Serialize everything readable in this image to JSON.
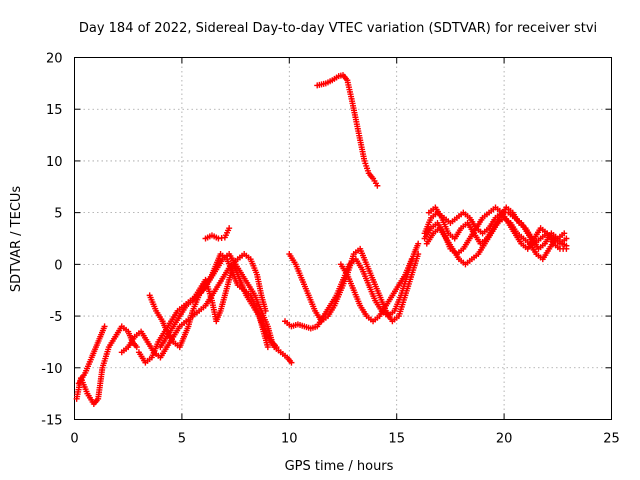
{
  "chart_data": {
    "type": "scatter",
    "title": "Day 184 of 2022, Sidereal Day-to-day VTEC variation (SDTVAR) for receiver stvi",
    "xlabel": "GPS time / hours",
    "ylabel": "SDTVAR / TECUs",
    "xlim": [
      0,
      25
    ],
    "ylim": [
      -15,
      20
    ],
    "xticks": [
      0,
      5,
      10,
      15,
      20,
      25
    ],
    "yticks": [
      -15,
      -10,
      -5,
      0,
      5,
      10,
      15,
      20
    ],
    "grid": true,
    "marker": "+",
    "color": "#ff0000",
    "series": [
      {
        "name": "track-1",
        "points": [
          [
            0.1,
            -13.0
          ],
          [
            0.3,
            -11.0
          ],
          [
            0.6,
            -12.5
          ],
          [
            0.9,
            -13.5
          ],
          [
            1.1,
            -13.0
          ],
          [
            1.3,
            -10.0
          ],
          [
            1.6,
            -8.0
          ],
          [
            1.9,
            -7.0
          ],
          [
            2.2,
            -6.0
          ],
          [
            2.5,
            -6.5
          ],
          [
            2.7,
            -7.5
          ],
          [
            2.9,
            -8.0
          ]
        ]
      },
      {
        "name": "track-2",
        "points": [
          [
            0.2,
            -11.5
          ],
          [
            0.5,
            -10.5
          ],
          [
            0.8,
            -9.0
          ],
          [
            1.0,
            -8.0
          ],
          [
            1.2,
            -7.0
          ],
          [
            1.4,
            -6.0
          ]
        ]
      },
      {
        "name": "track-3",
        "points": [
          [
            2.2,
            -8.5
          ],
          [
            2.5,
            -8.0
          ],
          [
            2.8,
            -7.0
          ],
          [
            3.1,
            -6.5
          ],
          [
            3.4,
            -7.5
          ],
          [
            3.7,
            -8.5
          ],
          [
            4.0,
            -9.0
          ],
          [
            4.3,
            -8.0
          ],
          [
            4.6,
            -7.0
          ],
          [
            4.9,
            -6.0
          ],
          [
            5.2,
            -5.5
          ],
          [
            5.5,
            -5.0
          ],
          [
            5.8,
            -4.5
          ],
          [
            6.1,
            -4.0
          ],
          [
            6.4,
            -3.0
          ],
          [
            6.7,
            -2.0
          ],
          [
            7.0,
            -1.0
          ],
          [
            7.3,
            0.0
          ],
          [
            7.6,
            0.5
          ],
          [
            7.9,
            1.0
          ],
          [
            8.2,
            0.5
          ],
          [
            8.5,
            -1.0
          ],
          [
            8.7,
            -3.0
          ],
          [
            8.9,
            -4.5
          ]
        ]
      },
      {
        "name": "track-4",
        "points": [
          [
            3.0,
            -8.5
          ],
          [
            3.3,
            -9.5
          ],
          [
            3.6,
            -9.0
          ],
          [
            3.9,
            -7.5
          ],
          [
            4.2,
            -6.5
          ],
          [
            4.5,
            -5.5
          ],
          [
            4.8,
            -4.5
          ],
          [
            5.1,
            -4.0
          ],
          [
            5.4,
            -3.5
          ],
          [
            5.7,
            -3.0
          ],
          [
            6.0,
            -2.5
          ],
          [
            6.3,
            -1.5
          ],
          [
            6.6,
            -0.5
          ],
          [
            6.9,
            0.5
          ],
          [
            7.2,
            1.0
          ],
          [
            7.5,
            0.0
          ],
          [
            7.8,
            -1.0
          ],
          [
            8.1,
            -2.0
          ],
          [
            8.4,
            -3.0
          ],
          [
            8.7,
            -4.5
          ],
          [
            9.0,
            -6.0
          ],
          [
            9.2,
            -7.5
          ],
          [
            9.4,
            -8.0
          ]
        ]
      },
      {
        "name": "track-5",
        "points": [
          [
            3.5,
            -3.0
          ],
          [
            3.8,
            -4.5
          ],
          [
            4.1,
            -5.5
          ],
          [
            4.3,
            -6.5
          ],
          [
            4.6,
            -7.5
          ],
          [
            4.9,
            -8.0
          ],
          [
            5.1,
            -7.0
          ],
          [
            5.3,
            -6.0
          ],
          [
            5.5,
            -4.5
          ],
          [
            5.8,
            -3.0
          ],
          [
            6.1,
            -2.0
          ],
          [
            6.4,
            -1.0
          ],
          [
            6.6,
            0.0
          ],
          [
            6.8,
            1.0
          ],
          [
            7.1,
            0.5
          ],
          [
            7.4,
            -1.0
          ],
          [
            7.6,
            -2.0
          ],
          [
            7.9,
            -2.5
          ],
          [
            8.2,
            -3.0
          ],
          [
            8.4,
            -4.0
          ],
          [
            8.7,
            -5.5
          ],
          [
            9.0,
            -7.0
          ],
          [
            9.3,
            -8.0
          ],
          [
            9.6,
            -8.5
          ],
          [
            9.9,
            -9.0
          ],
          [
            10.1,
            -9.5
          ]
        ]
      },
      {
        "name": "track-6",
        "points": [
          [
            4.0,
            -8.0
          ],
          [
            4.3,
            -7.0
          ],
          [
            4.6,
            -6.0
          ],
          [
            4.9,
            -5.0
          ],
          [
            5.2,
            -4.0
          ],
          [
            5.5,
            -3.5
          ],
          [
            5.8,
            -2.5
          ],
          [
            6.1,
            -1.5
          ],
          [
            6.4,
            -3.5
          ],
          [
            6.6,
            -5.5
          ],
          [
            6.8,
            -4.5
          ],
          [
            7.0,
            -3.0
          ],
          [
            7.2,
            -1.5
          ],
          [
            7.4,
            0.0
          ],
          [
            7.6,
            -1.0
          ],
          [
            7.8,
            -2.0
          ],
          [
            8.0,
            -3.0
          ],
          [
            8.3,
            -4.0
          ],
          [
            8.6,
            -5.0
          ],
          [
            8.8,
            -6.5
          ],
          [
            9.0,
            -8.0
          ]
        ]
      },
      {
        "name": "track-7",
        "points": [
          [
            6.1,
            2.5
          ],
          [
            6.4,
            2.8
          ],
          [
            6.7,
            2.5
          ],
          [
            7.0,
            2.6
          ],
          [
            7.2,
            3.5
          ]
        ]
      },
      {
        "name": "track-8",
        "points": [
          [
            9.8,
            -5.5
          ],
          [
            10.1,
            -6.0
          ],
          [
            10.4,
            -5.8
          ],
          [
            10.7,
            -6.0
          ],
          [
            11.0,
            -6.2
          ],
          [
            11.3,
            -6.0
          ],
          [
            11.6,
            -5.0
          ],
          [
            11.9,
            -4.0
          ],
          [
            12.2,
            -3.0
          ],
          [
            12.5,
            -1.5
          ],
          [
            12.8,
            0.0
          ],
          [
            13.1,
            0.5
          ],
          [
            13.4,
            -0.5
          ],
          [
            13.7,
            -2.0
          ],
          [
            14.0,
            -3.5
          ],
          [
            14.3,
            -4.5
          ],
          [
            14.6,
            -5.0
          ],
          [
            14.9,
            -4.5
          ],
          [
            15.2,
            -3.0
          ],
          [
            15.5,
            -1.0
          ],
          [
            15.8,
            1.0
          ],
          [
            16.0,
            2.0
          ]
        ]
      },
      {
        "name": "track-9",
        "points": [
          [
            10.0,
            1.0
          ],
          [
            10.3,
            0.0
          ],
          [
            10.6,
            -1.5
          ],
          [
            10.9,
            -3.0
          ],
          [
            11.2,
            -4.5
          ],
          [
            11.5,
            -5.5
          ],
          [
            11.8,
            -5.0
          ],
          [
            12.1,
            -4.0
          ],
          [
            12.4,
            -2.5
          ],
          [
            12.7,
            -1.0
          ],
          [
            13.0,
            1.0
          ],
          [
            13.3,
            1.5
          ],
          [
            13.6,
            0.0
          ],
          [
            13.9,
            -1.5
          ],
          [
            14.2,
            -3.0
          ],
          [
            14.5,
            -4.5
          ],
          [
            14.8,
            -5.5
          ],
          [
            15.1,
            -5.0
          ],
          [
            15.4,
            -3.0
          ],
          [
            15.7,
            -1.0
          ],
          [
            16.0,
            1.0
          ]
        ]
      },
      {
        "name": "track-10",
        "points": [
          [
            12.4,
            0.0
          ],
          [
            12.7,
            -1.0
          ],
          [
            13.0,
            -2.5
          ],
          [
            13.3,
            -4.0
          ],
          [
            13.6,
            -5.0
          ],
          [
            13.9,
            -5.5
          ],
          [
            14.2,
            -5.0
          ],
          [
            14.5,
            -4.0
          ],
          [
            14.8,
            -3.0
          ],
          [
            15.1,
            -2.0
          ],
          [
            15.4,
            -1.0
          ],
          [
            15.7,
            0.5
          ]
        ]
      },
      {
        "name": "track-11",
        "points": [
          [
            11.3,
            17.3
          ],
          [
            11.7,
            17.5
          ],
          [
            12.0,
            17.8
          ],
          [
            12.3,
            18.2
          ],
          [
            12.5,
            18.3
          ],
          [
            12.7,
            17.8
          ],
          [
            12.9,
            16.0
          ],
          [
            13.1,
            14.0
          ],
          [
            13.3,
            12.0
          ],
          [
            13.5,
            10.0
          ],
          [
            13.7,
            8.8
          ],
          [
            13.9,
            8.3
          ],
          [
            14.1,
            7.6
          ]
        ]
      },
      {
        "name": "track-12",
        "points": [
          [
            16.3,
            3.0
          ],
          [
            16.6,
            4.5
          ],
          [
            16.9,
            5.0
          ],
          [
            17.2,
            4.5
          ],
          [
            17.5,
            4.0
          ],
          [
            17.8,
            4.5
          ],
          [
            18.1,
            5.0
          ],
          [
            18.4,
            4.5
          ],
          [
            18.7,
            3.5
          ],
          [
            19.0,
            3.0
          ],
          [
            19.3,
            3.5
          ],
          [
            19.6,
            4.5
          ],
          [
            19.9,
            5.0
          ],
          [
            20.2,
            5.0
          ],
          [
            20.5,
            4.5
          ],
          [
            20.8,
            4.0
          ],
          [
            21.1,
            3.0
          ],
          [
            21.4,
            2.0
          ],
          [
            21.7,
            2.5
          ],
          [
            22.0,
            3.0
          ],
          [
            22.3,
            2.5
          ],
          [
            22.6,
            2.0
          ],
          [
            22.9,
            2.5
          ]
        ]
      },
      {
        "name": "track-13",
        "points": [
          [
            16.3,
            2.5
          ],
          [
            16.6,
            3.5
          ],
          [
            16.9,
            4.0
          ],
          [
            17.2,
            3.0
          ],
          [
            17.5,
            1.5
          ],
          [
            17.8,
            1.0
          ],
          [
            18.1,
            1.5
          ],
          [
            18.4,
            2.5
          ],
          [
            18.7,
            3.5
          ],
          [
            19.0,
            4.5
          ],
          [
            19.3,
            5.0
          ],
          [
            19.6,
            5.5
          ],
          [
            19.9,
            5.0
          ],
          [
            20.2,
            4.0
          ],
          [
            20.5,
            3.0
          ],
          [
            20.8,
            2.0
          ],
          [
            21.1,
            1.5
          ],
          [
            21.4,
            2.5
          ],
          [
            21.7,
            3.5
          ],
          [
            22.0,
            3.0
          ],
          [
            22.3,
            2.0
          ],
          [
            22.6,
            1.5
          ],
          [
            22.9,
            1.5
          ]
        ]
      },
      {
        "name": "track-14",
        "points": [
          [
            16.4,
            2.0
          ],
          [
            16.7,
            3.0
          ],
          [
            17.0,
            3.5
          ],
          [
            17.3,
            2.5
          ],
          [
            17.6,
            1.5
          ],
          [
            17.9,
            0.5
          ],
          [
            18.2,
            0.0
          ],
          [
            18.5,
            0.5
          ],
          [
            18.8,
            1.0
          ],
          [
            19.1,
            2.0
          ],
          [
            19.4,
            3.0
          ],
          [
            19.7,
            4.0
          ],
          [
            20.0,
            4.5
          ],
          [
            20.3,
            4.0
          ],
          [
            20.6,
            3.0
          ],
          [
            20.9,
            2.5
          ],
          [
            21.2,
            2.0
          ],
          [
            21.5,
            1.0
          ],
          [
            21.8,
            0.5
          ],
          [
            22.1,
            1.5
          ],
          [
            22.4,
            2.5
          ],
          [
            22.7,
            2.0
          ],
          [
            22.9,
            1.8
          ]
        ]
      },
      {
        "name": "track-15",
        "points": [
          [
            16.5,
            5.0
          ],
          [
            16.8,
            5.5
          ],
          [
            17.1,
            4.5
          ],
          [
            17.4,
            3.0
          ],
          [
            17.7,
            2.5
          ],
          [
            18.0,
            3.5
          ],
          [
            18.3,
            4.0
          ],
          [
            18.6,
            3.0
          ],
          [
            18.9,
            2.0
          ],
          [
            19.2,
            2.5
          ],
          [
            19.5,
            3.5
          ],
          [
            19.8,
            4.5
          ],
          [
            20.1,
            5.5
          ],
          [
            20.4,
            5.0
          ],
          [
            20.7,
            4.0
          ],
          [
            21.0,
            3.5
          ],
          [
            21.3,
            2.5
          ],
          [
            21.6,
            1.5
          ],
          [
            21.9,
            2.0
          ],
          [
            22.2,
            3.0
          ],
          [
            22.5,
            2.5
          ],
          [
            22.8,
            3.0
          ]
        ]
      }
    ]
  }
}
